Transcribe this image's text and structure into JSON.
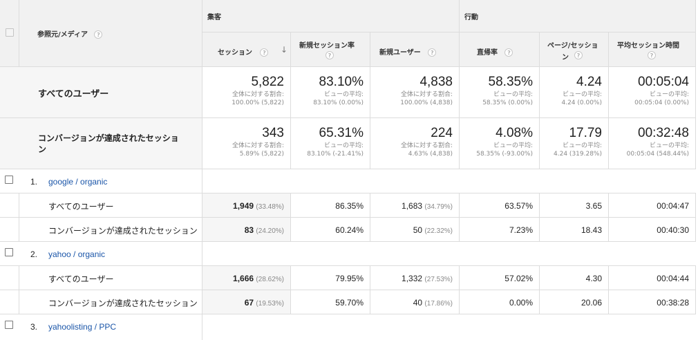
{
  "header": {
    "dimension_label": "参照元/メディア",
    "group_acquisition": "集客",
    "group_behavior": "行動",
    "columns": [
      "セッション",
      "新規セッション率",
      "新規ユーザー",
      "直帰率",
      "ページ/セッション",
      "平均セッション時間"
    ],
    "col_sessions_line1": "セッション",
    "col_newrate_line1": "新規セッション率",
    "col_newusers_line1": "新規ユーザー",
    "col_bounce_line1": "直帰率",
    "col_pps_line1": "ページ/セッショ",
    "col_pps_line2": "ン",
    "col_avgtime_line1": "平均セッション時間",
    "help_glyph": "?",
    "sort_arrow": "↓"
  },
  "summary": [
    {
      "label": "すべてのユーザー",
      "cells": [
        {
          "value": "5,822",
          "sub1": "全体に対する割合:",
          "sub2": "100.00% (5,822)"
        },
        {
          "value": "83.10%",
          "sub1": "ビューの平均:",
          "sub2": "83.10% (0.00%)"
        },
        {
          "value": "4,838",
          "sub1": "全体に対する割合:",
          "sub2": "100.00% (4,838)"
        },
        {
          "value": "58.35%",
          "sub1": "ビューの平均:",
          "sub2": "58.35% (0.00%)"
        },
        {
          "value": "4.24",
          "sub1": "ビューの平均:",
          "sub2": "4.24 (0.00%)"
        },
        {
          "value": "00:05:04",
          "sub1": "ビューの平均:",
          "sub2": "00:05:04 (0.00%)"
        }
      ]
    },
    {
      "label_line1": "コンバージョンが達成されたセッショ",
      "label_line2": "ン",
      "cells": [
        {
          "value": "343",
          "sub1": "全体に対する割合:",
          "sub2": "5.89% (5,822)"
        },
        {
          "value": "65.31%",
          "sub1": "ビューの平均:",
          "sub2": "83.10% (-21.41%)"
        },
        {
          "value": "224",
          "sub1": "全体に対する割合:",
          "sub2": "4.63% (4,838)"
        },
        {
          "value": "4.08%",
          "sub1": "ビューの平均:",
          "sub2": "58.35% (-93.00%)"
        },
        {
          "value": "17.79",
          "sub1": "ビューの平均:",
          "sub2": "4.24 (319.28%)"
        },
        {
          "value": "00:32:48",
          "sub1": "ビューの平均:",
          "sub2": "00:05:04 (548.44%)"
        }
      ]
    }
  ],
  "groups": [
    {
      "index": "1.",
      "name": "google / organic",
      "rows": [
        {
          "label": "すべてのユーザー",
          "sessions": "1,949",
          "sessions_pct": "(33.48%)",
          "newrate": "86.35%",
          "newusers": "1,683",
          "newusers_pct": "(34.79%)",
          "bounce": "63.57%",
          "pps": "3.65",
          "avgtime": "00:04:47"
        },
        {
          "label": "コンバージョンが達成されたセッション",
          "sessions": "83",
          "sessions_pct": "(24.20%)",
          "newrate": "60.24%",
          "newusers": "50",
          "newusers_pct": "(22.32%)",
          "bounce": "7.23%",
          "pps": "18.43",
          "avgtime": "00:40:30"
        }
      ]
    },
    {
      "index": "2.",
      "name": "yahoo / organic",
      "rows": [
        {
          "label": "すべてのユーザー",
          "sessions": "1,666",
          "sessions_pct": "(28.62%)",
          "newrate": "79.95%",
          "newusers": "1,332",
          "newusers_pct": "(27.53%)",
          "bounce": "57.02%",
          "pps": "4.30",
          "avgtime": "00:04:44"
        },
        {
          "label": "コンバージョンが達成されたセッション",
          "sessions": "67",
          "sessions_pct": "(19.53%)",
          "newrate": "59.70%",
          "newusers": "40",
          "newusers_pct": "(17.86%)",
          "bounce": "0.00%",
          "pps": "20.06",
          "avgtime": "00:38:28"
        }
      ]
    },
    {
      "index": "3.",
      "name": "yahoolisting / PPC",
      "rows": []
    }
  ]
}
